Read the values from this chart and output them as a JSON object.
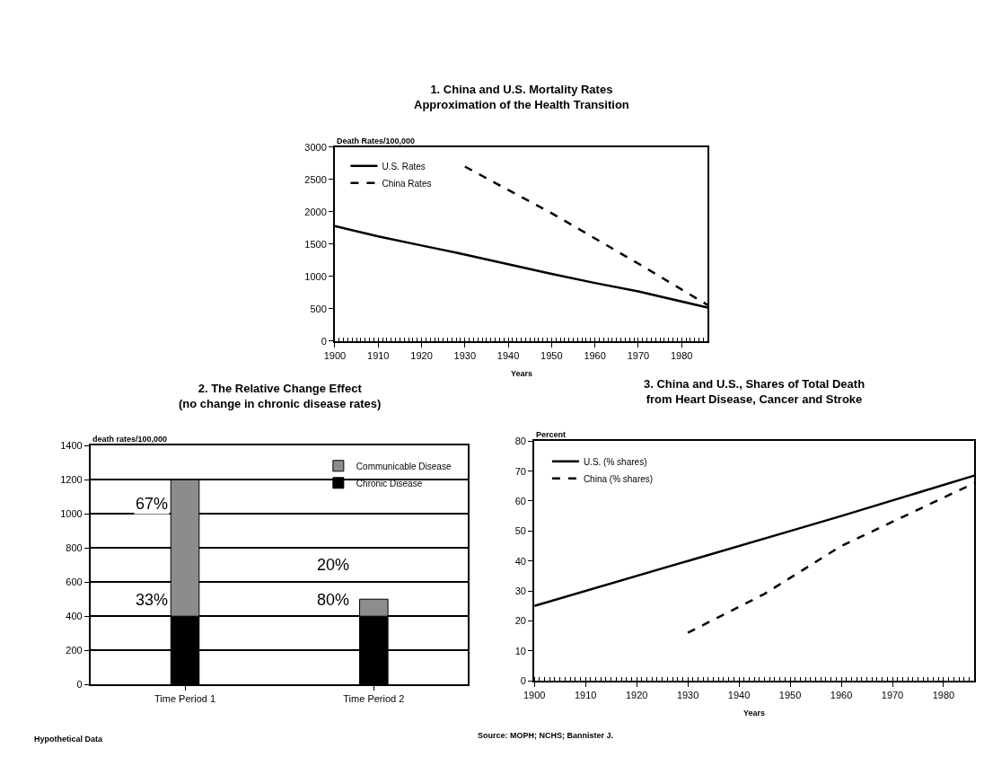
{
  "chart_data": [
    {
      "type": "line",
      "title": "1. China and U.S. Mortality Rates\nApproximation of the Health Transition",
      "xlabel": "Years",
      "ylabel": "Death Rates/100,000",
      "xlim": [
        1900,
        1986
      ],
      "xticks": [
        1900,
        1910,
        1920,
        1930,
        1940,
        1950,
        1960,
        1970,
        1980
      ],
      "ylim": [
        0,
        3000
      ],
      "yticks": [
        0,
        500,
        1000,
        1500,
        2000,
        2500,
        3000
      ],
      "grid": false,
      "legend": "top left",
      "marker": "none",
      "series": [
        {
          "name": "U.S. Rates",
          "color": "#000000",
          "line_style": "solid",
          "x": [
            1900,
            1910,
            1920,
            1930,
            1940,
            1950,
            1960,
            1970,
            1986
          ],
          "values": [
            1780,
            1620,
            1480,
            1340,
            1190,
            1040,
            900,
            770,
            520
          ]
        },
        {
          "name": "China Rates",
          "color": "#000000",
          "line_style": "dashed",
          "x": [
            1930,
            1950,
            1970,
            1986
          ],
          "values": [
            2700,
            1980,
            1200,
            560
          ]
        }
      ]
    },
    {
      "type": "bar",
      "stacked": true,
      "title": "2. The Relative Change Effect\n(no change in chronic disease rates)",
      "ylabel": "death rates/100,000",
      "categories": [
        "Time Period 1",
        "Time Period 2"
      ],
      "ylim": [
        0,
        1400
      ],
      "yticks": [
        0,
        200,
        400,
        600,
        800,
        1000,
        1200,
        1400
      ],
      "grid": "y",
      "legend": "top right",
      "annotations": [
        "Hypothetical Data",
        "67%",
        "33%",
        "20%",
        "80%"
      ],
      "series": [
        {
          "name": "Chronic Disease",
          "color": "#000000",
          "values": [
            400,
            400
          ]
        },
        {
          "name": "Communicable Disease",
          "color": "#8c8c8c",
          "values": [
            800,
            100
          ]
        }
      ]
    },
    {
      "type": "line",
      "title": "3. China and U.S., Shares of Total Death\nfrom Heart Disease, Cancer and Stroke",
      "xlabel": "Years",
      "ylabel": "Percent",
      "xlim": [
        1900,
        1986
      ],
      "xticks": [
        1900,
        1910,
        1920,
        1930,
        1940,
        1950,
        1960,
        1970,
        1980
      ],
      "ylim": [
        0,
        80
      ],
      "yticks": [
        0,
        10,
        20,
        30,
        40,
        50,
        60,
        70,
        80
      ],
      "grid": false,
      "legend": "top left",
      "marker": "none",
      "annotations": [
        "Source: MOPH; NCHS; Bannister J."
      ],
      "series": [
        {
          "name": "U.S. (% shares)",
          "color": "#000000",
          "line_style": "solid",
          "x": [
            1900,
            1930,
            1950,
            1960,
            1986
          ],
          "values": [
            25,
            40,
            50,
            55,
            68.5
          ]
        },
        {
          "name": "China (% shares)",
          "color": "#000000",
          "line_style": "dashed",
          "x": [
            1930,
            1945,
            1960,
            1986
          ],
          "values": [
            16,
            29,
            45,
            66
          ]
        }
      ]
    }
  ]
}
